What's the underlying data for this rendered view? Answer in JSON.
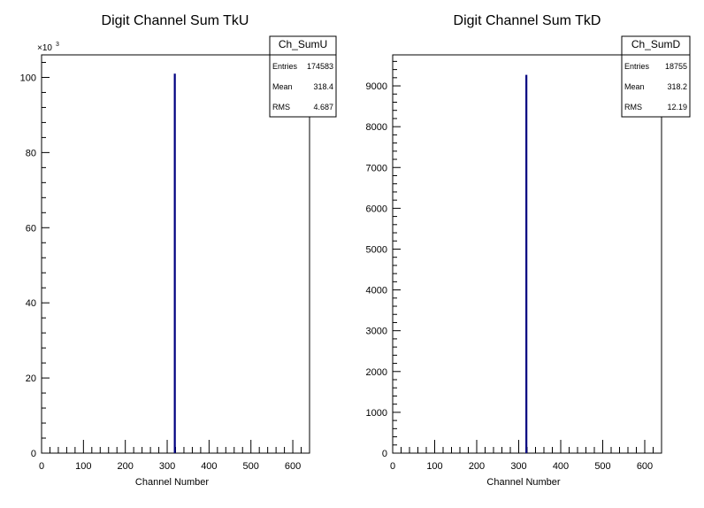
{
  "chart_data": [
    {
      "type": "bar",
      "title": "Digit Channel Sum TkU",
      "xlabel": "Channel Number",
      "ylabel": "",
      "xlim": [
        0,
        640
      ],
      "ylim": [
        0,
        106000
      ],
      "y_exponent_label": "×10",
      "y_exponent_power": "3",
      "xticks": [
        "0",
        "100",
        "200",
        "300",
        "400",
        "500",
        "600"
      ],
      "yticks": [
        {
          "value": 0,
          "label": "0"
        },
        {
          "value": 20000,
          "label": "20"
        },
        {
          "value": 40000,
          "label": "40"
        },
        {
          "value": 60000,
          "label": "60"
        },
        {
          "value": 80000,
          "label": "80"
        },
        {
          "value": 100000,
          "label": "100"
        }
      ],
      "bars": [
        {
          "x": 318,
          "value": 101000
        }
      ],
      "bar_color": "#000080",
      "stats": {
        "name": "Ch_SumU",
        "rows": [
          {
            "label": "Entries",
            "value": "174583"
          },
          {
            "label": "Mean",
            "value": "318.4"
          },
          {
            "label": "RMS",
            "value": "4.687"
          }
        ]
      }
    },
    {
      "type": "bar",
      "title": "Digit Channel Sum TkD",
      "xlabel": "Channel Number",
      "ylabel": "",
      "xlim": [
        0,
        640
      ],
      "ylim": [
        0,
        9760
      ],
      "xticks": [
        "0",
        "100",
        "200",
        "300",
        "400",
        "500",
        "600"
      ],
      "yticks": [
        {
          "value": 0,
          "label": "0"
        },
        {
          "value": 1000,
          "label": "1000"
        },
        {
          "value": 2000,
          "label": "2000"
        },
        {
          "value": 3000,
          "label": "3000"
        },
        {
          "value": 4000,
          "label": "4000"
        },
        {
          "value": 5000,
          "label": "5000"
        },
        {
          "value": 6000,
          "label": "6000"
        },
        {
          "value": 7000,
          "label": "7000"
        },
        {
          "value": 8000,
          "label": "8000"
        },
        {
          "value": 9000,
          "label": "9000"
        }
      ],
      "bars": [
        {
          "x": 318,
          "value": 9270
        }
      ],
      "bar_color": "#000080",
      "stats": {
        "name": "Ch_SumD",
        "rows": [
          {
            "label": "Entries",
            "value": "18755"
          },
          {
            "label": "Mean",
            "value": "318.2"
          },
          {
            "label": "RMS",
            "value": "12.19"
          }
        ]
      }
    }
  ]
}
